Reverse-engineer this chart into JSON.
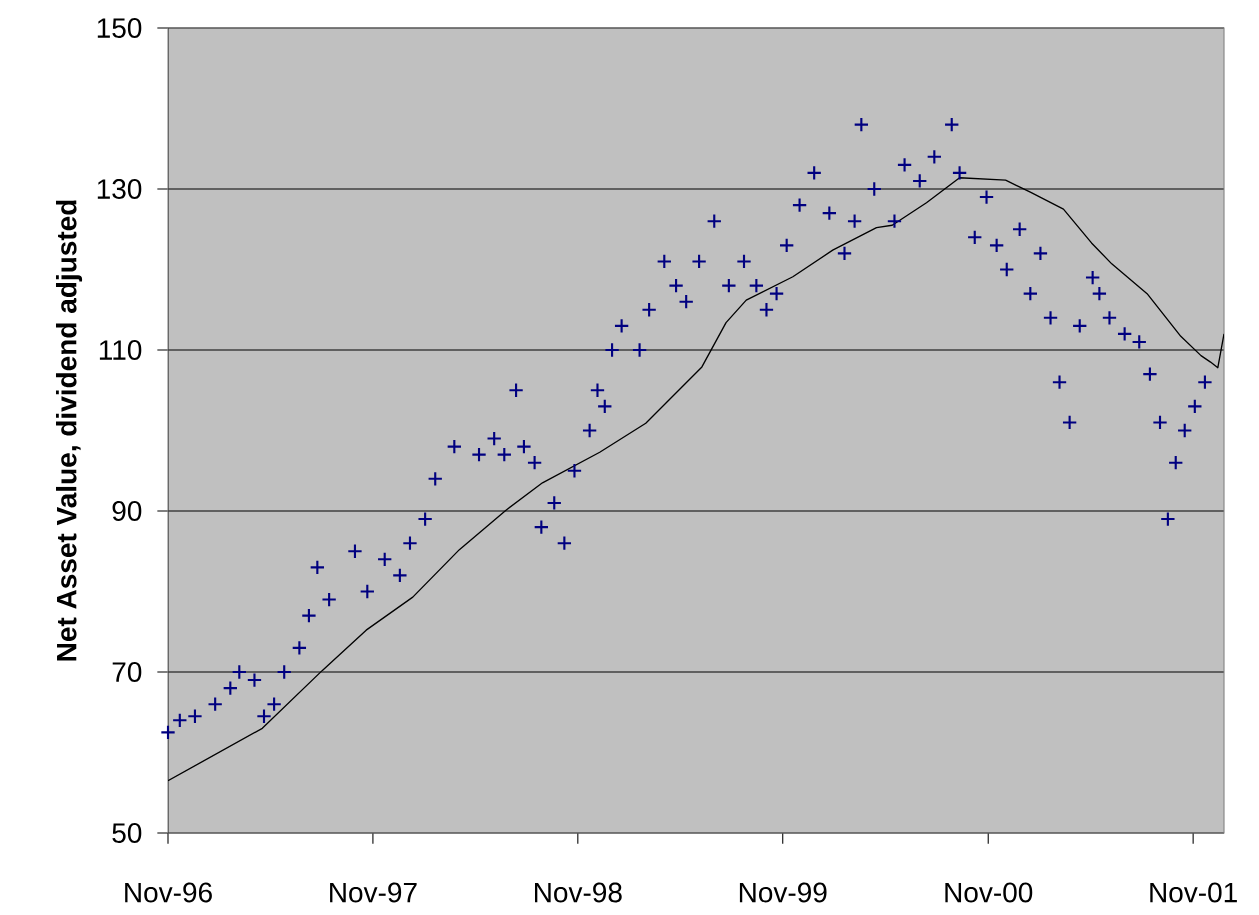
{
  "chart_data": {
    "type": "scatter",
    "ylabel": "Net Asset Value, dividend adjusted",
    "xlim": [
      "1996-11-01",
      "2001-12-26"
    ],
    "ylim": [
      50,
      150
    ],
    "yticks": [
      50,
      70,
      90,
      110,
      130,
      150
    ],
    "xticks": [
      {
        "value": "1996-11-01",
        "label": "Nov-96"
      },
      {
        "value": "1997-11-01",
        "label": "Nov-97"
      },
      {
        "value": "1998-11-01",
        "label": "Nov-98"
      },
      {
        "value": "1999-11-01",
        "label": "Nov-99"
      },
      {
        "value": "2000-11-01",
        "label": "Nov-00"
      },
      {
        "value": "2001-11-01",
        "label": "Nov-01"
      }
    ],
    "grid": "y",
    "series": [
      {
        "color": "#000080",
        "marker": "cross",
        "x": [
          "1996-11-01",
          "1996-11-22",
          "1996-12-19",
          "1997-01-24",
          "1997-02-20",
          "1997-03-08",
          "1997-04-04",
          "1997-04-21",
          "1997-05-09",
          "1997-05-27",
          "1997-06-23",
          "1997-07-10",
          "1997-07-25",
          "1997-08-15",
          "1997-09-30",
          "1997-10-22",
          "1997-11-22",
          "1997-12-19",
          "1998-01-06",
          "1998-02-02",
          "1998-02-20",
          "1998-03-26",
          "1998-05-09",
          "1998-06-05",
          "1998-06-23",
          "1998-07-14",
          "1998-07-28",
          "1998-08-16",
          "1998-08-28",
          "1998-09-20",
          "1998-10-08",
          "1998-10-26",
          "1998-11-22",
          "1998-12-06",
          "1998-12-19",
          "1999-01-01",
          "1999-01-18",
          "1999-02-19",
          "1999-03-08",
          "1999-04-04",
          "1999-04-25",
          "1999-05-13",
          "1999-06-05",
          "1999-07-02",
          "1999-07-28",
          "1999-08-24",
          "1999-09-15",
          "1999-10-03",
          "1999-10-21",
          "1999-11-08",
          "1999-12-01",
          "1999-12-27",
          "2000-01-23",
          "2000-02-19",
          "2000-03-08",
          "2000-03-20",
          "2000-04-12",
          "2000-05-18",
          "2000-06-05",
          "2000-07-02",
          "2000-07-28",
          "2000-08-28",
          "2000-09-11",
          "2000-10-08",
          "2000-10-29",
          "2000-11-16",
          "2000-12-04",
          "2000-12-27",
          "2001-01-15",
          "2001-02-02",
          "2001-02-20",
          "2001-03-08",
          "2001-03-26",
          "2001-04-13",
          "2001-05-06",
          "2001-05-18",
          "2001-06-05",
          "2001-07-02",
          "2001-07-28",
          "2001-08-16",
          "2001-09-03",
          "2001-09-17",
          "2001-10-01",
          "2001-10-17",
          "2001-11-04",
          "2001-11-22"
        ],
        "values": [
          62.5,
          64,
          64.5,
          66,
          68,
          70,
          69,
          64.5,
          66,
          70,
          73,
          77,
          83,
          79,
          85,
          80,
          84,
          82,
          86,
          89,
          94,
          98,
          97,
          99,
          97,
          105,
          98,
          96,
          88,
          91,
          86,
          95,
          100,
          105,
          103,
          110,
          113,
          110,
          115,
          121,
          118,
          116,
          121,
          126,
          118,
          121,
          118,
          115,
          117,
          123,
          128,
          132,
          127,
          122,
          126,
          138,
          130,
          126,
          133,
          131,
          134,
          138,
          132,
          124,
          129,
          123,
          120,
          125,
          117,
          122,
          114,
          106,
          101,
          113,
          119,
          117,
          114,
          112,
          111,
          107,
          101,
          89,
          96,
          100,
          103,
          106
        ]
      },
      {
        "type": "line",
        "color": "#000000",
        "marker": "none",
        "x": [
          "1996-11-01",
          "1997-04-18",
          "1997-08-03",
          "1997-10-20",
          "1998-01-11",
          "1998-04-04",
          "1998-06-26",
          "1998-08-30",
          "1998-12-10",
          "1999-03-02",
          "1999-06-10",
          "1999-07-23",
          "1999-08-28",
          "1999-11-19",
          "2000-01-29",
          "2000-04-16",
          "2000-05-14",
          "2000-07-14",
          "2000-09-11",
          "2000-12-02",
          "2001-01-15",
          "2001-03-15",
          "2001-05-04",
          "2001-06-09",
          "2001-08-11",
          "2001-10-10",
          "2001-11-15",
          "2001-12-02",
          "2001-12-15",
          "2001-12-26"
        ],
        "values": [
          56.5,
          63,
          70.2,
          75.2,
          79.3,
          85.2,
          90.1,
          93.5,
          97.3,
          100.9,
          107.9,
          113.4,
          116.2,
          119.1,
          122.4,
          125.2,
          125.5,
          128.3,
          131.4,
          131.1,
          129.6,
          127.5,
          123.3,
          120.7,
          117,
          111.7,
          109.3,
          108.5,
          107.8,
          112
        ]
      }
    ]
  }
}
